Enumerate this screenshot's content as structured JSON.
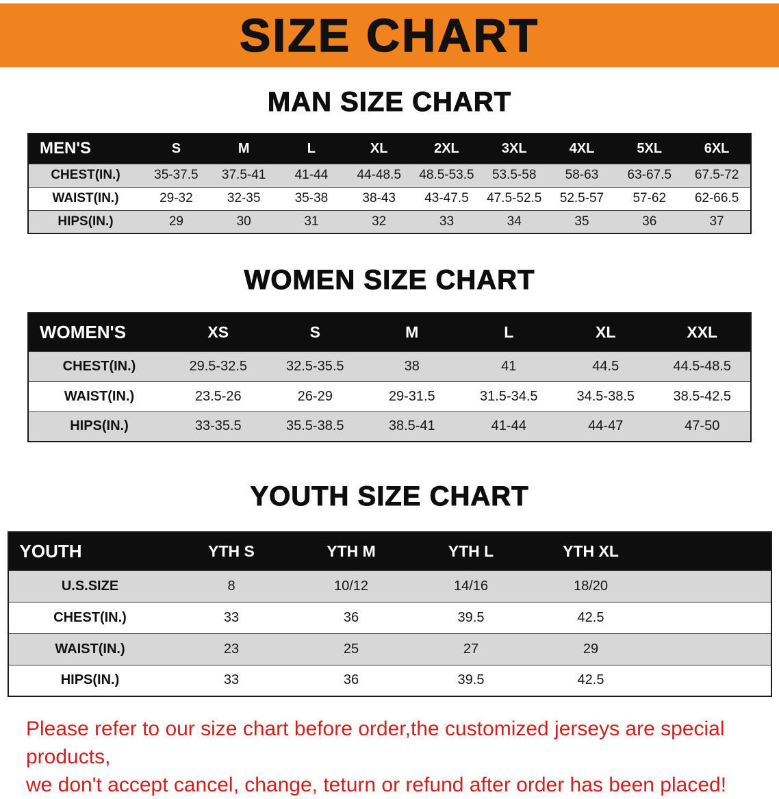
{
  "banner": {
    "title": "SIZE CHART"
  },
  "colors": {
    "banner_bg": "#f0831e",
    "banner_text": "#111111",
    "table_header_bg": "#0e0e0e",
    "table_header_text": "#ffffff",
    "row_bg": "#ffffff",
    "row_alt_bg": "#d7d7d7",
    "notice_text": "#cc2121"
  },
  "sections": [
    {
      "id": "men",
      "heading": "MAN SIZE CHART",
      "header_label": "MEN'S",
      "columns": [
        "S",
        "M",
        "L",
        "XL",
        "2XL",
        "3XL",
        "4XL",
        "5XL",
        "6XL"
      ],
      "rows": [
        {
          "label": "CHEST(IN.)",
          "values": [
            "35-37.5",
            "37.5-41",
            "41-44",
            "44-48.5",
            "48.5-53.5",
            "53.5-58",
            "58-63",
            "63-67.5",
            "67.5-72"
          ]
        },
        {
          "label": "WAIST(IN.)",
          "values": [
            "29-32",
            "32-35",
            "35-38",
            "38-43",
            "43-47.5",
            "47.5-52.5",
            "52.5-57",
            "57-62",
            "62-66.5"
          ]
        },
        {
          "label": "HIPS(IN.)",
          "values": [
            "29",
            "30",
            "31",
            "32",
            "33",
            "34",
            "35",
            "36",
            "37"
          ]
        }
      ]
    },
    {
      "id": "women",
      "heading": "WOMEN SIZE CHART",
      "header_label": "WOMEN'S",
      "columns": [
        "XS",
        "S",
        "M",
        "L",
        "XL",
        "XXL"
      ],
      "rows": [
        {
          "label": "CHEST(IN.)",
          "values": [
            "29.5-32.5",
            "32.5-35.5",
            "38",
            "41",
            "44.5",
            "44.5-48.5"
          ]
        },
        {
          "label": "WAIST(IN.)",
          "values": [
            "23.5-26",
            "26-29",
            "29-31.5",
            "31.5-34.5",
            "34.5-38.5",
            "38.5-42.5"
          ]
        },
        {
          "label": "HIPS(IN.)",
          "values": [
            "33-35.5",
            "35.5-38.5",
            "38.5-41",
            "41-44",
            "44-47",
            "47-50"
          ]
        }
      ]
    },
    {
      "id": "youth",
      "heading": "YOUTH SIZE CHART",
      "header_label": "YOUTH",
      "columns": [
        "YTH S",
        "YTH M",
        "YTH L",
        "YTH XL"
      ],
      "rows": [
        {
          "label": "U.S.SIZE",
          "values": [
            "8",
            "10/12",
            "14/16",
            "18/20"
          ]
        },
        {
          "label": "CHEST(IN.)",
          "values": [
            "33",
            "36",
            "39.5",
            "42.5"
          ]
        },
        {
          "label": "WAIST(IN.)",
          "values": [
            "23",
            "25",
            "27",
            "29"
          ]
        },
        {
          "label": "HIPS(IN.)",
          "values": [
            "33",
            "36",
            "39.5",
            "42.5"
          ]
        }
      ]
    }
  ],
  "footer": {
    "line1": "Please refer to our size chart before order,the customized jerseys are special products,",
    "line2": "we don't accept cancel, change, teturn or refund after order has been placed!"
  }
}
